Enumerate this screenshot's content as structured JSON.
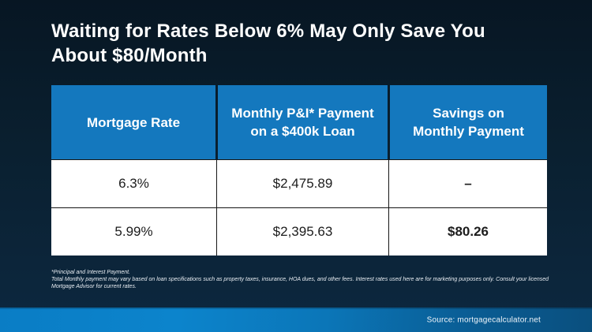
{
  "slide": {
    "title": "Waiting for Rates Below 6% May Only Save You\nAbout $80/Month"
  },
  "table": {
    "headers": [
      {
        "label": "Mortgage Rate"
      },
      {
        "label": "Monthly P&I* Payment\non a $400k Loan"
      },
      {
        "label": "Savings on\nMonthly Payment"
      }
    ],
    "rows": [
      {
        "rate": "6.3%",
        "payment": "$2,475.89",
        "savings": "–"
      },
      {
        "rate": "5.99%",
        "payment": "$2,395.63",
        "savings": "$80.26"
      }
    ]
  },
  "footnote": {
    "line1": "*Principal and Interest Payment.",
    "line2": "Total Monthly payment may vary based on loan specifications such as property taxes, insurance, HOA dues, and other fees. Interest rates used here are for marketing purposes only. Consult your licensed Mortgage Advisor for current rates."
  },
  "footer": {
    "source": "Source: mortgagecalculator.net"
  },
  "colors": {
    "background_top": "#071623",
    "background_bottom": "#0d2840",
    "table_header_blue": "#1478be",
    "cell_background": "#ffffff",
    "cell_text": "#1c1c1c",
    "footer_bar_left": "#0a7dc5",
    "footer_bar_right": "#0a4f7e",
    "title_text": "#ffffff"
  }
}
